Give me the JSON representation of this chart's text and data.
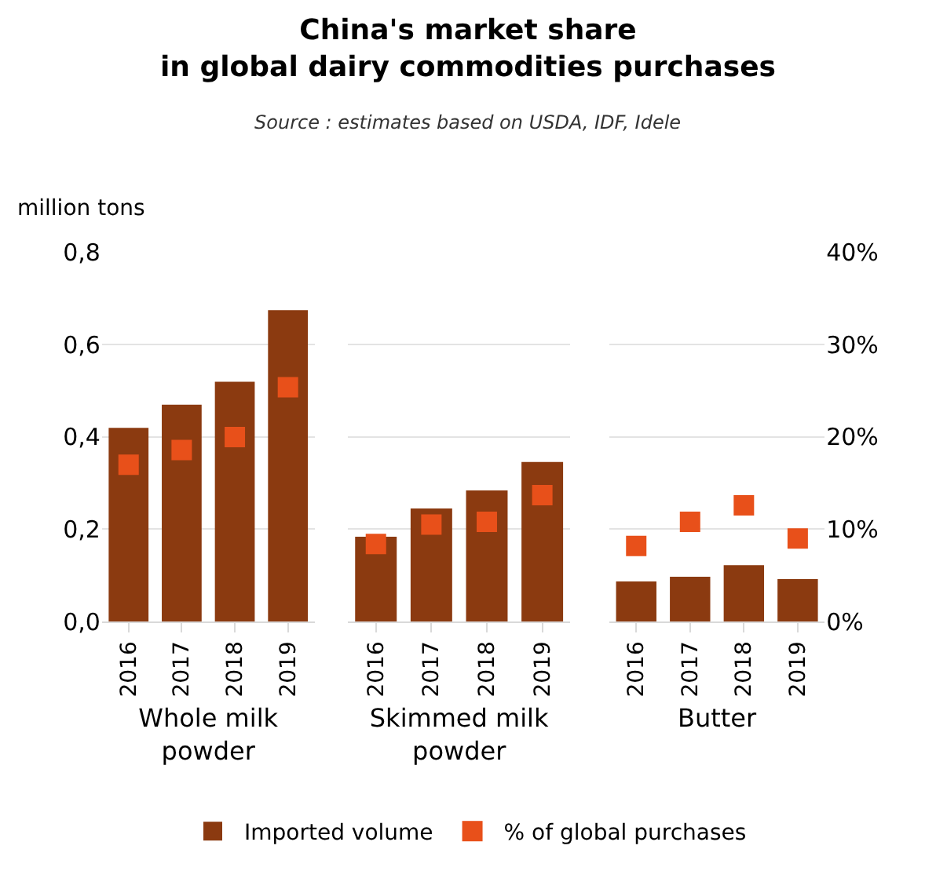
{
  "chart_data": [
    {
      "type": "bar",
      "title": "China's market share in global dairy commodities purchases",
      "subtitle": "Source : estimates based on USDA, IDF, Idele",
      "ylabel": "million tons",
      "xlabel": "Whole milk powder",
      "categories": [
        "2016",
        "2017",
        "2018",
        "2019"
      ],
      "ylim": [
        0,
        0.8
      ],
      "yticks": [
        {
          "value": 0,
          "label": "0,0"
        },
        {
          "value": 0.2,
          "label": "0,2"
        },
        {
          "value": 0.4,
          "label": "0,4"
        },
        {
          "value": 0.6,
          "label": "0,6"
        },
        {
          "value": 0.8,
          "label": "0,8"
        }
      ],
      "y2lim": [
        0,
        40
      ],
      "grid": "y",
      "legend": "bottom",
      "tick_labels": [
        "x",
        "y"
      ],
      "series": [
        {
          "name": "Imported volume",
          "color": "#8b3a10",
          "values": [
            0.42,
            0.47,
            0.52,
            0.675
          ]
        },
        {
          "name": "% of global purchases",
          "type": "scatter",
          "axis": "y2",
          "marker": "square",
          "color": "#e8501a",
          "values": [
            17,
            18.6,
            20,
            25.4
          ]
        }
      ]
    },
    {
      "type": "bar",
      "xlabel": "Skimmed milk powder",
      "categories": [
        "2016",
        "2017",
        "2018",
        "2019"
      ],
      "ylim": [
        0,
        0.8
      ],
      "y2lim": [
        0,
        40
      ],
      "grid": "y",
      "tick_labels": "x",
      "series": [
        {
          "color": "#8b3a10",
          "values": [
            0.184,
            0.245,
            0.284,
            0.346
          ]
        },
        {
          "type": "scatter",
          "axis": "y2",
          "marker": "square",
          "color": "#e8501a",
          "values": [
            8.4,
            10.5,
            10.8,
            13.7
          ]
        }
      ]
    },
    {
      "type": "bar",
      "xlabel": "Butter",
      "categories": [
        "2016",
        "2017",
        "2018",
        "2019"
      ],
      "ylim": [
        0,
        0.8
      ],
      "y2lim": [
        0,
        40
      ],
      "y2ticks": [
        {
          "value": 0,
          "label": "0%"
        },
        {
          "value": 10,
          "label": "10%"
        },
        {
          "value": 20,
          "label": "20%"
        },
        {
          "value": 30,
          "label": "30%"
        },
        {
          "value": 40,
          "label": "40%"
        }
      ],
      "grid": "y",
      "tick_labels": [
        "x",
        "y2"
      ],
      "series": [
        {
          "color": "#8b3a10",
          "values": [
            0.087,
            0.097,
            0.122,
            0.092
          ]
        },
        {
          "type": "scatter",
          "axis": "y2",
          "marker": "square",
          "color": "#e8501a",
          "values": [
            8.2,
            10.8,
            12.6,
            9.0
          ]
        }
      ]
    }
  ]
}
